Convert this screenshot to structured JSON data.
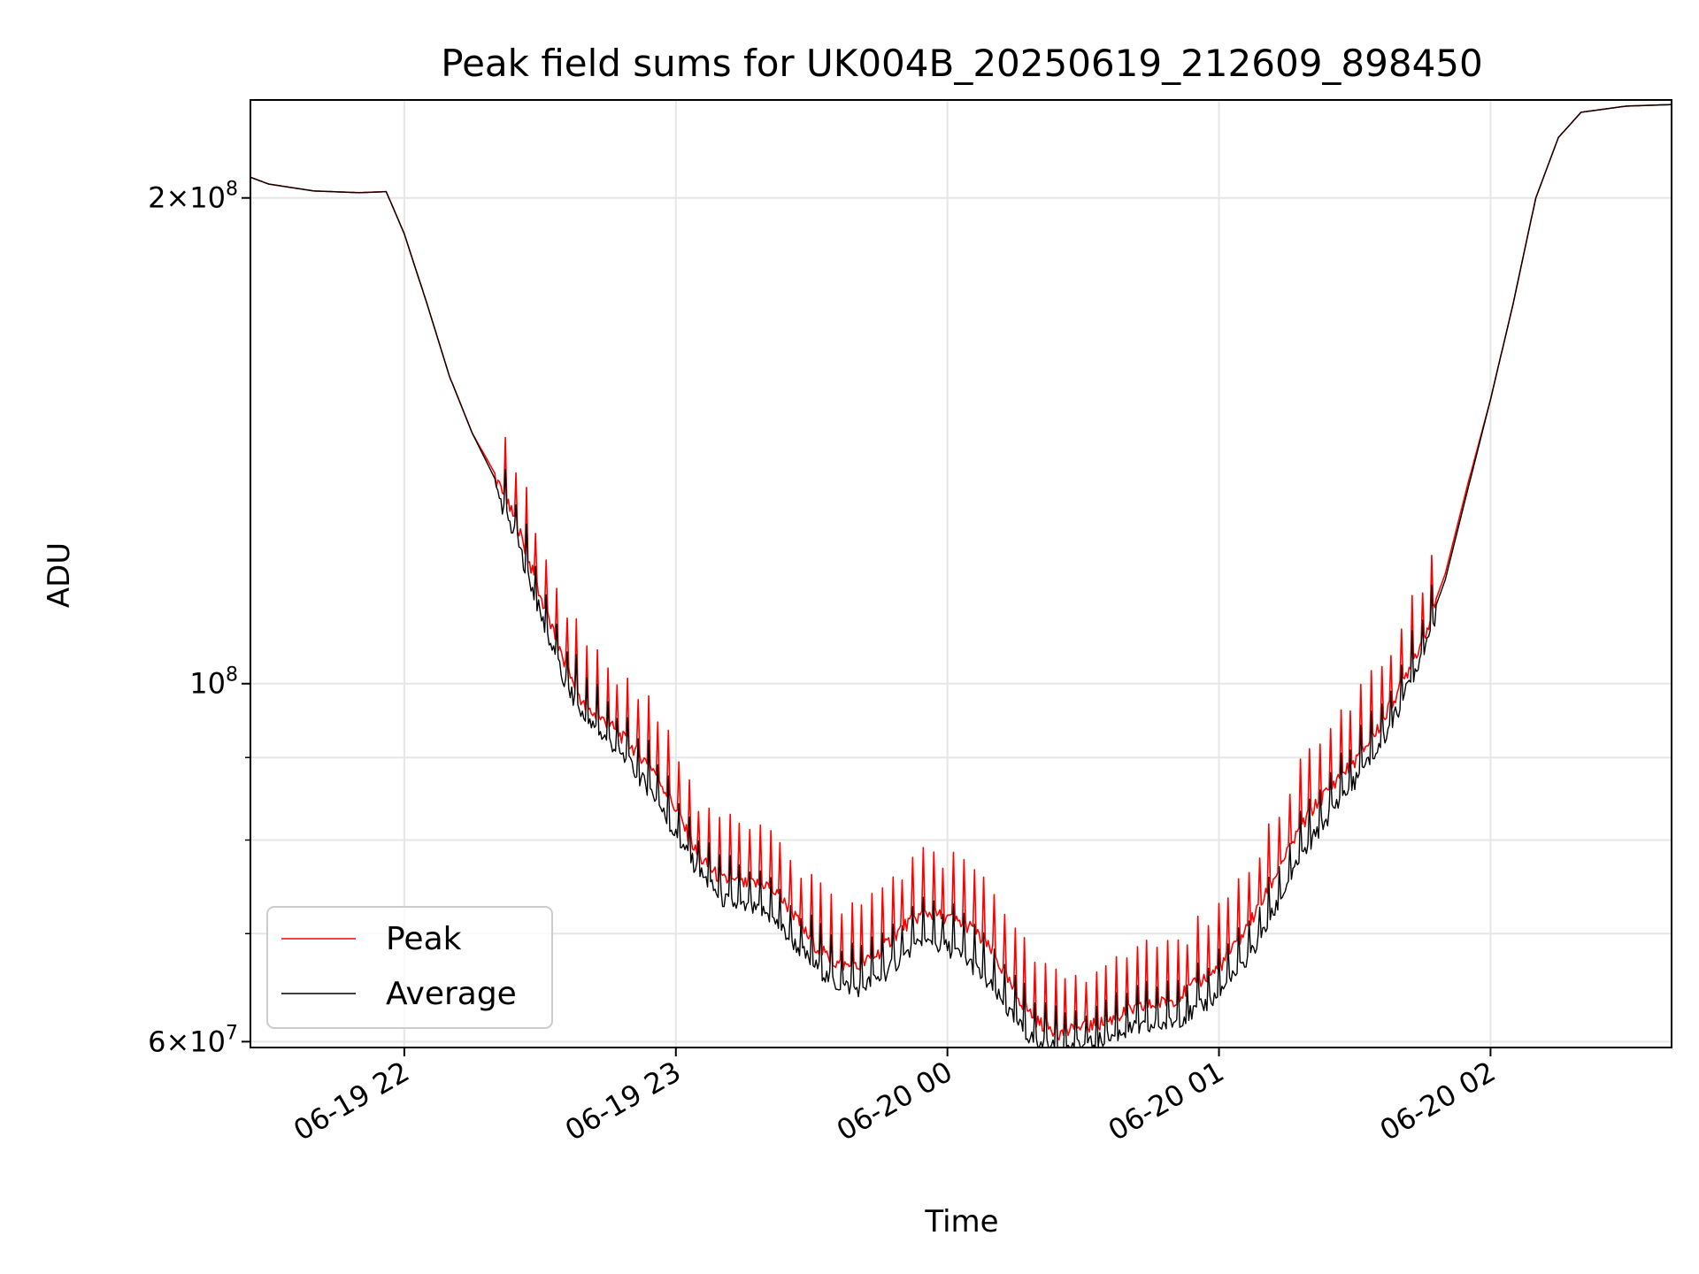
{
  "chart_data": {
    "type": "line",
    "title": "Peak field sums for UK004B_20250619_212609_898450",
    "xlabel": "Time",
    "ylabel": "ADU",
    "yscale": "log",
    "ylim": [
      59500000,
      230000000
    ],
    "xlim": [
      "2025-06-19 21:26",
      "2025-06-20 02:40"
    ],
    "grid": true,
    "legend_position": "lower-left",
    "x_ticks": [
      {
        "t": "2025-06-19 22:00",
        "label": "06-19 22"
      },
      {
        "t": "2025-06-19 23:00",
        "label": "06-19 23"
      },
      {
        "t": "2025-06-20 00:00",
        "label": "06-20 00"
      },
      {
        "t": "2025-06-20 01:00",
        "label": "06-20 01"
      },
      {
        "t": "2025-06-20 02:00",
        "label": "06-20 02"
      }
    ],
    "y_ticks_major": [
      {
        "value": 60000000,
        "base": "6",
        "exp": "7"
      },
      {
        "value": 100000000,
        "base": "",
        "exp": "8"
      },
      {
        "value": 200000000,
        "base": "2",
        "exp": "8"
      }
    ],
    "y_ticks_minor": [
      70000000,
      80000000,
      90000000
    ],
    "series": [
      {
        "name": "Peak",
        "color": "#ff0000",
        "spikes": true,
        "points": [
          [
            "2025-06-19 21:26",
            206000000
          ],
          [
            "2025-06-19 21:30",
            204000000
          ],
          [
            "2025-06-19 21:40",
            202000000
          ],
          [
            "2025-06-19 21:50",
            201500000
          ],
          [
            "2025-06-19 21:56",
            201800000
          ],
          [
            "2025-06-19 22:00",
            190000000
          ],
          [
            "2025-06-19 22:05",
            172000000
          ],
          [
            "2025-06-19 22:10",
            155000000
          ],
          [
            "2025-06-19 22:15",
            143000000
          ],
          [
            "2025-06-19 22:20",
            135000000
          ],
          [
            "2025-06-19 22:25",
            126000000
          ],
          [
            "2025-06-19 22:30",
            114000000
          ],
          [
            "2025-06-19 22:35",
            104000000
          ],
          [
            "2025-06-19 22:40",
            97000000
          ],
          [
            "2025-06-19 22:45",
            95000000
          ],
          [
            "2025-06-19 22:50",
            92000000
          ],
          [
            "2025-06-19 22:55",
            89000000
          ],
          [
            "2025-06-19 23:00",
            84000000
          ],
          [
            "2025-06-19 23:05",
            78500000
          ],
          [
            "2025-06-19 23:10",
            76000000
          ],
          [
            "2025-06-19 23:15",
            75500000
          ],
          [
            "2025-06-19 23:20",
            75500000
          ],
          [
            "2025-06-19 23:25",
            73000000
          ],
          [
            "2025-06-19 23:30",
            69500000
          ],
          [
            "2025-06-19 23:35",
            67500000
          ],
          [
            "2025-06-19 23:40",
            67000000
          ],
          [
            "2025-06-19 23:45",
            68500000
          ],
          [
            "2025-06-19 23:50",
            71000000
          ],
          [
            "2025-06-19 23:55",
            72500000
          ],
          [
            "2025-06-20 00:00",
            72000000
          ],
          [
            "2025-06-20 00:05",
            71000000
          ],
          [
            "2025-06-20 00:10",
            68500000
          ],
          [
            "2025-06-20 00:15",
            64500000
          ],
          [
            "2025-06-20 00:20",
            62000000
          ],
          [
            "2025-06-20 00:25",
            61000000
          ],
          [
            "2025-06-20 00:30",
            61500000
          ],
          [
            "2025-06-20 00:35",
            62000000
          ],
          [
            "2025-06-20 00:40",
            63000000
          ],
          [
            "2025-06-20 00:45",
            63500000
          ],
          [
            "2025-06-20 00:50",
            64000000
          ],
          [
            "2025-06-20 00:55",
            65500000
          ],
          [
            "2025-06-20 01:00",
            67000000
          ],
          [
            "2025-06-20 01:05",
            70000000
          ],
          [
            "2025-06-20 01:10",
            74000000
          ],
          [
            "2025-06-20 01:15",
            79000000
          ],
          [
            "2025-06-20 01:20",
            83500000
          ],
          [
            "2025-06-20 01:25",
            87000000
          ],
          [
            "2025-06-20 01:30",
            90000000
          ],
          [
            "2025-06-20 01:35",
            94000000
          ],
          [
            "2025-06-20 01:40",
            100000000
          ],
          [
            "2025-06-20 01:45",
            107000000
          ],
          [
            "2025-06-20 01:50",
            117000000
          ],
          [
            "2025-06-20 01:55",
            133000000
          ],
          [
            "2025-06-20 02:00",
            150000000
          ],
          [
            "2025-06-20 02:05",
            172000000
          ],
          [
            "2025-06-20 02:10",
            200000000
          ],
          [
            "2025-06-20 02:15",
            218000000
          ],
          [
            "2025-06-20 02:20",
            226000000
          ],
          [
            "2025-06-20 02:30",
            228000000
          ],
          [
            "2025-06-20 02:40",
            228500000
          ]
        ]
      },
      {
        "name": "Average",
        "color": "#000000",
        "spikes": false,
        "points": [
          [
            "2025-06-19 21:26",
            206000000
          ],
          [
            "2025-06-19 21:30",
            204000000
          ],
          [
            "2025-06-19 21:40",
            202000000
          ],
          [
            "2025-06-19 21:50",
            201500000
          ],
          [
            "2025-06-19 21:56",
            201800000
          ],
          [
            "2025-06-19 22:00",
            190000000
          ],
          [
            "2025-06-19 22:05",
            172000000
          ],
          [
            "2025-06-19 22:10",
            155000000
          ],
          [
            "2025-06-19 22:15",
            143000000
          ],
          [
            "2025-06-19 22:20",
            134000000
          ],
          [
            "2025-06-19 22:25",
            124000000
          ],
          [
            "2025-06-19 22:30",
            112000000
          ],
          [
            "2025-06-19 22:35",
            102000000
          ],
          [
            "2025-06-19 22:40",
            96000000
          ],
          [
            "2025-06-19 22:45",
            93500000
          ],
          [
            "2025-06-19 22:50",
            90000000
          ],
          [
            "2025-06-19 22:55",
            86500000
          ],
          [
            "2025-06-19 23:00",
            81500000
          ],
          [
            "2025-06-19 23:05",
            77500000
          ],
          [
            "2025-06-19 23:10",
            74500000
          ],
          [
            "2025-06-19 23:15",
            73500000
          ],
          [
            "2025-06-19 23:20",
            73000000
          ],
          [
            "2025-06-19 23:25",
            70500000
          ],
          [
            "2025-06-19 23:30",
            68000000
          ],
          [
            "2025-06-19 23:35",
            66000000
          ],
          [
            "2025-06-19 23:40",
            65500000
          ],
          [
            "2025-06-19 23:45",
            66500000
          ],
          [
            "2025-06-19 23:50",
            68500000
          ],
          [
            "2025-06-19 23:55",
            70000000
          ],
          [
            "2025-06-20 00:00",
            69500000
          ],
          [
            "2025-06-20 00:05",
            68000000
          ],
          [
            "2025-06-20 00:10",
            65500000
          ],
          [
            "2025-06-20 00:15",
            62500000
          ],
          [
            "2025-06-20 00:20",
            60500000
          ],
          [
            "2025-06-20 00:25",
            60000000
          ],
          [
            "2025-06-20 00:30",
            60300000
          ],
          [
            "2025-06-20 00:35",
            61000000
          ],
          [
            "2025-06-20 00:40",
            61800000
          ],
          [
            "2025-06-20 00:45",
            62000000
          ],
          [
            "2025-06-20 00:50",
            62500000
          ],
          [
            "2025-06-20 00:55",
            63500000
          ],
          [
            "2025-06-20 01:00",
            65000000
          ],
          [
            "2025-06-20 01:05",
            67500000
          ],
          [
            "2025-06-20 01:10",
            71000000
          ],
          [
            "2025-06-20 01:15",
            76000000
          ],
          [
            "2025-06-20 01:20",
            80500000
          ],
          [
            "2025-06-20 01:25",
            84500000
          ],
          [
            "2025-06-20 01:30",
            88000000
          ],
          [
            "2025-06-20 01:35",
            92000000
          ],
          [
            "2025-06-20 01:40",
            98000000
          ],
          [
            "2025-06-20 01:45",
            106000000
          ],
          [
            "2025-06-20 01:50",
            116000000
          ],
          [
            "2025-06-20 01:55",
            132000000
          ],
          [
            "2025-06-20 02:00",
            150000000
          ],
          [
            "2025-06-20 02:05",
            172000000
          ],
          [
            "2025-06-20 02:10",
            200000000
          ],
          [
            "2025-06-20 02:15",
            218000000
          ],
          [
            "2025-06-20 02:20",
            226000000
          ],
          [
            "2025-06-20 02:30",
            228000000
          ],
          [
            "2025-06-20 02:40",
            228500000
          ]
        ]
      }
    ]
  }
}
